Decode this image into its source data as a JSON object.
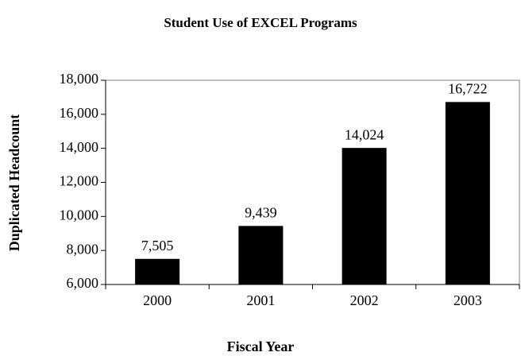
{
  "chart_data": {
    "type": "bar",
    "title": "Student Use of EXCEL Programs",
    "x_label": "Fiscal Year",
    "y_label": "Duplicated Headcount",
    "categories": [
      "2000",
      "2001",
      "2002",
      "2003"
    ],
    "values": [
      7505,
      9439,
      14024,
      16722
    ],
    "value_labels": [
      "7,505",
      "9,439",
      "14,024",
      "16,722"
    ],
    "color": "#000000",
    "ylim": [
      6000,
      18000
    ],
    "yticks": [
      {
        "value": 6000,
        "label": "6,000"
      },
      {
        "value": 8000,
        "label": "8,000"
      },
      {
        "value": 10000,
        "label": "10,000"
      },
      {
        "value": 12000,
        "label": "12,000"
      },
      {
        "value": 14000,
        "label": "14,000"
      },
      {
        "value": 16000,
        "label": "16,000"
      },
      {
        "value": 18000,
        "label": "18,000"
      }
    ]
  }
}
